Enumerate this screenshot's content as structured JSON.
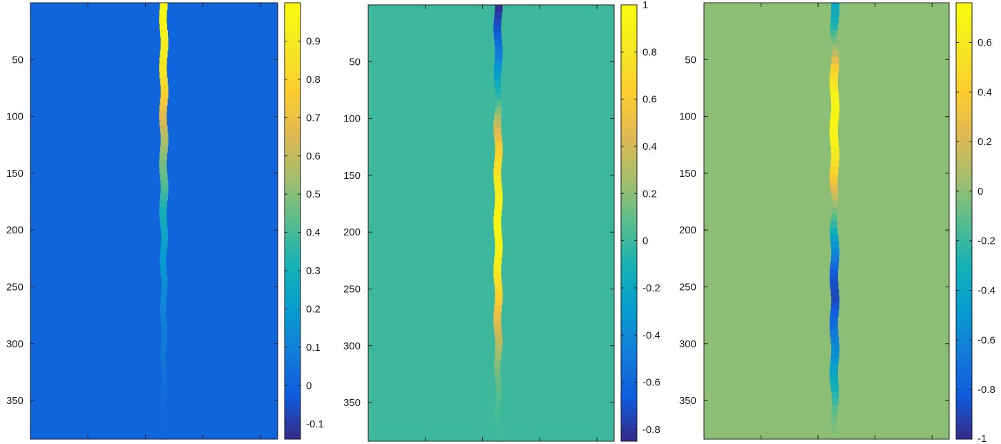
{
  "chart_data": [
    {
      "type": "heatmap",
      "title": "",
      "xlabel": "",
      "ylabel": "",
      "ylim": [
        0,
        384
      ],
      "yticks": [
        50,
        100,
        150,
        200,
        250,
        300,
        350
      ],
      "background_value": 0,
      "colorbar": {
        "range": [
          -0.14,
          1.0
        ],
        "ticks": [
          -0.1,
          0,
          0.1,
          0.2,
          0.3,
          0.4,
          0.5,
          0.6,
          0.7,
          0.8,
          0.9
        ],
        "tick_labels": [
          "-0.1",
          "0",
          "0.1",
          "0.2",
          "0.3",
          "0.4",
          "0.5",
          "0.6",
          "0.7",
          "0.8",
          "0.9"
        ]
      },
      "streak_profile": {
        "y": [
          0,
          20,
          40,
          60,
          80,
          100,
          120,
          140,
          160,
          180,
          200,
          220,
          240,
          260,
          280,
          300,
          320,
          340,
          360,
          384
        ],
        "values": [
          1.0,
          0.95,
          0.9,
          0.88,
          0.78,
          0.66,
          0.56,
          0.48,
          0.42,
          0.32,
          0.26,
          0.21,
          0.17,
          0.13,
          0.1,
          0.08,
          0.06,
          0.04,
          0.02,
          0.0
        ]
      }
    },
    {
      "type": "heatmap",
      "title": "",
      "xlabel": "",
      "ylabel": "",
      "ylim": [
        0,
        384
      ],
      "yticks": [
        50,
        100,
        150,
        200,
        250,
        300,
        350
      ],
      "background_value": 0,
      "colorbar": {
        "range": [
          -0.85,
          1.0
        ],
        "ticks": [
          -0.8,
          -0.6,
          -0.4,
          -0.2,
          0,
          0.2,
          0.4,
          0.6,
          0.8,
          1
        ],
        "tick_labels": [
          "-0.8",
          "-0.6",
          "-0.4",
          "-0.2",
          "0",
          "0.2",
          "0.4",
          "0.6",
          "0.8",
          "1"
        ]
      },
      "streak_profile": {
        "y": [
          0,
          20,
          40,
          60,
          80,
          100,
          120,
          140,
          160,
          180,
          200,
          220,
          240,
          260,
          280,
          300,
          320,
          340,
          360,
          384
        ],
        "values": [
          -0.85,
          -0.7,
          -0.52,
          -0.3,
          -0.05,
          0.3,
          0.55,
          0.72,
          0.85,
          0.92,
          0.93,
          0.9,
          0.78,
          0.62,
          0.45,
          0.3,
          0.16,
          0.08,
          0.03,
          0.0
        ]
      }
    },
    {
      "type": "heatmap",
      "title": "",
      "xlabel": "",
      "ylabel": "",
      "ylim": [
        0,
        384
      ],
      "yticks": [
        50,
        100,
        150,
        200,
        250,
        300,
        350
      ],
      "background_value": 0,
      "colorbar": {
        "range": [
          -1.0,
          0.76
        ],
        "ticks": [
          -1,
          -0.8,
          -0.6,
          -0.4,
          -0.2,
          0,
          0.2,
          0.4,
          0.6
        ],
        "tick_labels": [
          "-1",
          "-0.8",
          "-0.6",
          "-0.4",
          "-0.2",
          "0",
          "0.2",
          "0.4",
          "0.6"
        ]
      },
      "streak_profile": {
        "y": [
          0,
          20,
          40,
          60,
          80,
          100,
          120,
          140,
          160,
          180,
          200,
          220,
          240,
          260,
          280,
          300,
          320,
          340,
          360,
          384
        ],
        "values": [
          -0.4,
          -0.28,
          0.05,
          0.45,
          0.66,
          0.72,
          0.7,
          0.55,
          0.3,
          0.0,
          -0.3,
          -0.6,
          -0.85,
          -0.9,
          -0.75,
          -0.6,
          -0.45,
          -0.3,
          -0.1,
          0.0
        ]
      }
    }
  ]
}
